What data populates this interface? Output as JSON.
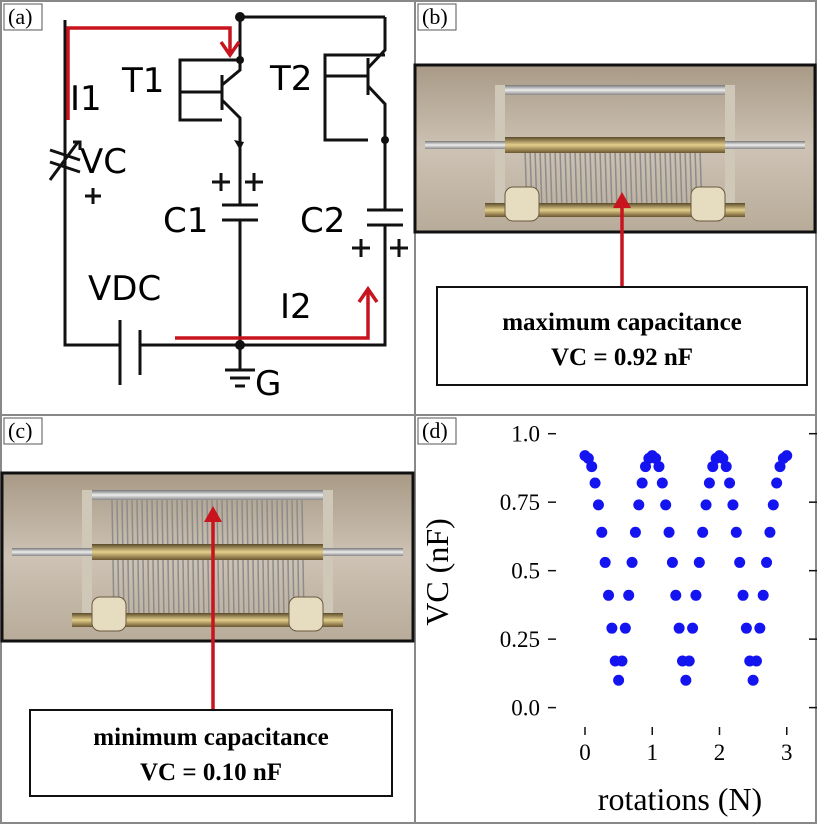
{
  "panel_labels": [
    "(a)",
    "(b)",
    "(c)",
    "(d)"
  ],
  "circuit": {
    "labels": {
      "i1": "I1",
      "t1": "T1",
      "t2": "T2",
      "vc": "VC",
      "c1": "C1",
      "c2": "C2",
      "vdc": "VDC",
      "i2": "I2",
      "g": "G"
    }
  },
  "photo_b": {
    "caption": [
      "maximum capacitance",
      "VC = 0.92 nF"
    ]
  },
  "photo_c": {
    "caption": [
      "minimum capacitance",
      "VC = 0.10 nF"
    ]
  },
  "chart_data": {
    "type": "scatter",
    "xlabel": "rotations (N)",
    "ylabel": "VC (nF)",
    "color": "#1414f0",
    "x": [
      0,
      0.05,
      0.1,
      0.15,
      0.2,
      0.25,
      0.3,
      0.35,
      0.4,
      0.45,
      0.5,
      0.55,
      0.6,
      0.65,
      0.7,
      0.75,
      0.8,
      0.85,
      0.9,
      0.95,
      1,
      1.05,
      1.1,
      1.15,
      1.2,
      1.25,
      1.3,
      1.35,
      1.4,
      1.45,
      1.5,
      1.55,
      1.6,
      1.65,
      1.7,
      1.75,
      1.8,
      1.85,
      1.9,
      1.95,
      2,
      2.05,
      2.1,
      2.15,
      2.2,
      2.25,
      2.3,
      2.35,
      2.4,
      2.45,
      2.5,
      2.55,
      2.6,
      2.65,
      2.7,
      2.75,
      2.8,
      2.85,
      2.9,
      2.95,
      3
    ],
    "values": [
      0.92,
      0.91,
      0.88,
      0.82,
      0.74,
      0.64,
      0.53,
      0.41,
      0.29,
      0.17,
      0.1,
      0.17,
      0.29,
      0.41,
      0.53,
      0.64,
      0.74,
      0.82,
      0.88,
      0.91,
      0.92,
      0.91,
      0.88,
      0.82,
      0.74,
      0.64,
      0.53,
      0.41,
      0.29,
      0.17,
      0.1,
      0.17,
      0.29,
      0.41,
      0.53,
      0.64,
      0.74,
      0.82,
      0.88,
      0.91,
      0.92,
      0.91,
      0.88,
      0.82,
      0.74,
      0.64,
      0.53,
      0.41,
      0.29,
      0.17,
      0.1,
      0.17,
      0.29,
      0.41,
      0.53,
      0.64,
      0.74,
      0.82,
      0.88,
      0.91,
      0.92
    ],
    "xlim": [
      -0.55,
      3.45
    ],
    "ylim": [
      -0.1,
      1.05
    ],
    "xticks": [
      0,
      1,
      2,
      3
    ],
    "yticks": [
      {
        "value": 0,
        "label": "0.0"
      },
      0.25,
      0.5,
      0.75,
      {
        "value": 1,
        "label": "1.0"
      }
    ]
  }
}
